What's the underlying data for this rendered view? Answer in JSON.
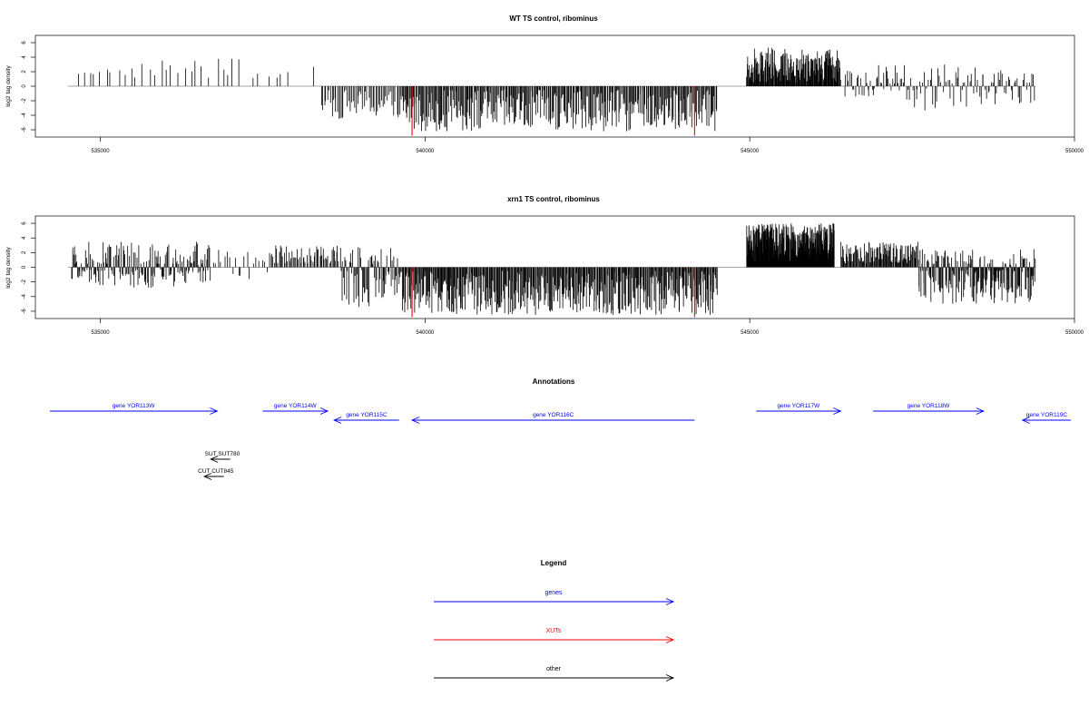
{
  "chart_data": [
    {
      "type": "bar",
      "title": "WT TS control, ribominus",
      "ylabel": "log2 tag density",
      "xlim": [
        534000,
        550000
      ],
      "ylim": [
        -7,
        7
      ],
      "xticks": [
        "535000",
        "540000",
        "545000",
        "550000"
      ],
      "yticks": [
        "6",
        "4",
        "2",
        "0",
        "-2",
        "-4",
        "-6"
      ],
      "baseline": [
        534500,
        549400
      ],
      "highlight_bars": [
        {
          "x": 539800,
          "value": -6.8,
          "color": "#ff0000"
        },
        {
          "x": 544150,
          "value": -6.8,
          "color": "#ff0000"
        }
      ],
      "segments": [
        {
          "from": 534600,
          "to": 535500,
          "min": 1.5,
          "max": 2.5,
          "count": 10
        },
        {
          "from": 535500,
          "to": 537200,
          "min": 1.0,
          "max": 3.8,
          "count": 18
        },
        {
          "from": 537300,
          "to": 538000,
          "min": 1.0,
          "max": 2.2,
          "count": 6
        },
        {
          "from": 538250,
          "to": 538300,
          "min": 2.5,
          "max": 2.7,
          "count": 1
        },
        {
          "from": 538400,
          "to": 539600,
          "min": -4.5,
          "max": -0.5,
          "count": 55
        },
        {
          "from": 539600,
          "to": 544500,
          "min": -6.2,
          "max": -0.5,
          "count": 360
        },
        {
          "from": 544950,
          "to": 546400,
          "min": 0.5,
          "max": 5.3,
          "count": 190
        },
        {
          "from": 546450,
          "to": 547400,
          "min": -1.5,
          "max": 3.0,
          "count": 45
        },
        {
          "from": 547400,
          "to": 548500,
          "min": -3.5,
          "max": 3.0,
          "count": 45
        },
        {
          "from": 548500,
          "to": 549400,
          "min": -2.5,
          "max": 2.2,
          "count": 40
        }
      ]
    },
    {
      "type": "bar",
      "title": "xrn1 TS control, ribominus",
      "ylabel": "log2 tag density",
      "xlim": [
        534000,
        550000
      ],
      "ylim": [
        -7,
        7
      ],
      "xticks": [
        "535000",
        "540000",
        "545000",
        "550000"
      ],
      "yticks": [
        "6",
        "4",
        "2",
        "0",
        "-2",
        "-4",
        "-6"
      ],
      "baseline": [
        534500,
        549400
      ],
      "highlight_bars": [
        {
          "x": 539800,
          "value": -6.8,
          "color": "#ff0000"
        },
        {
          "x": 544150,
          "value": -6.8,
          "color": "#ff0000"
        }
      ],
      "segments": [
        {
          "from": 534550,
          "to": 536700,
          "min": -2.8,
          "max": 3.5,
          "count": 180
        },
        {
          "from": 536700,
          "to": 537600,
          "min": -1.8,
          "max": 2.5,
          "count": 20
        },
        {
          "from": 537600,
          "to": 538700,
          "min": 0.5,
          "max": 3.0,
          "count": 60
        },
        {
          "from": 538700,
          "to": 539600,
          "min": -5.5,
          "max": 2.8,
          "count": 70
        },
        {
          "from": 539600,
          "to": 544500,
          "min": -6.5,
          "max": -0.5,
          "count": 450
        },
        {
          "from": 544950,
          "to": 546300,
          "min": 0.5,
          "max": 6.0,
          "count": 350
        },
        {
          "from": 546400,
          "to": 547600,
          "min": 0.5,
          "max": 3.5,
          "count": 110
        },
        {
          "from": 547600,
          "to": 549400,
          "min": -5.0,
          "max": 2.5,
          "count": 200
        }
      ]
    }
  ],
  "annotations": {
    "title": "Annotations",
    "genes": [
      {
        "label": "gene YOR113W",
        "from": 533000,
        "to": 536800,
        "dir": "right",
        "row": 0
      },
      {
        "label": "gene YOR114W",
        "from": 537500,
        "to": 538500,
        "dir": "right",
        "row": 0
      },
      {
        "label": "gene YOR115C",
        "from": 539600,
        "to": 538600,
        "dir": "left",
        "row": 1
      },
      {
        "label": "gene YOR116C",
        "from": 544150,
        "to": 539800,
        "dir": "left",
        "row": 1
      },
      {
        "label": "gene YOR117W",
        "from": 545100,
        "to": 546400,
        "dir": "right",
        "row": 0
      },
      {
        "label": "gene YOR118W",
        "from": 546900,
        "to": 548600,
        "dir": "right",
        "row": 0
      },
      {
        "label": "gene YOR119C",
        "from": 551000,
        "to": 549200,
        "dir": "left",
        "row": 1
      }
    ],
    "other": [
      {
        "label": "SUT SUT780",
        "from": 537000,
        "to": 536700,
        "dir": "left",
        "row": 0
      },
      {
        "label": "CUT CUT845",
        "from": 536900,
        "to": 536600,
        "dir": "left",
        "row": 1
      }
    ]
  },
  "legend": {
    "title": "Legend",
    "items": [
      {
        "label": "genes",
        "color": "#0000ff"
      },
      {
        "label": "XUTs",
        "color": "#ff0000"
      },
      {
        "label": "other",
        "color": "#000000"
      }
    ]
  }
}
